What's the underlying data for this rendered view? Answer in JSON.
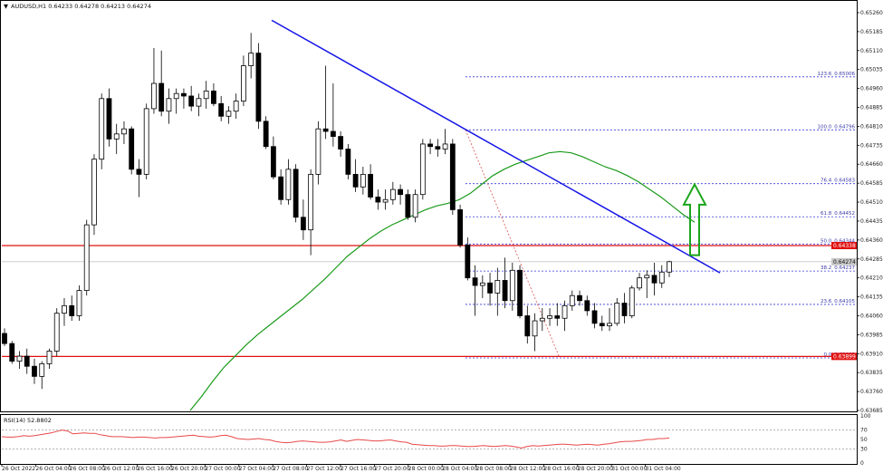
{
  "header": {
    "arrow": "▼",
    "text": "AUDUSD,H1  0.64233 0.64278 0.64213 0.64274"
  },
  "colors": {
    "bull_fill": "#ffffff",
    "bear_fill": "#000000",
    "candle_stroke": "#000000",
    "trendline": "#1414e6",
    "ma": "#1a9a1a",
    "resistance": "#e01010",
    "fib_dotted": "#3a3ad6",
    "fib_diag": "#e05050",
    "rsi_line": "#e84848",
    "arrow": "#1aa51a",
    "tag_red": "#e01010",
    "tag_gray": "#c8c8c8"
  },
  "chart_data": [
    {
      "type": "candlestick",
      "name": "price",
      "ylim": [
        0.63685,
        0.6526
      ],
      "y_ticks": [
        "0.65260",
        "0.65185",
        "0.65110",
        "0.65035",
        "0.64960",
        "0.64885",
        "0.64810",
        "0.64735",
        "0.64660",
        "0.64585",
        "0.64510",
        "0.64435",
        "0.64360",
        "0.64285",
        "0.64210",
        "0.64135",
        "0.64060",
        "0.63985",
        "0.63910",
        "0.63835",
        "0.63760",
        "0.63685"
      ],
      "x_labels": [
        "26 Oct 2022",
        "26 Oct 04:00",
        "26 Oct 08:00",
        "26 Oct 12:00",
        "26 Oct 16:00",
        "26 Oct 20:00",
        "27 Oct 00:00",
        "27 Oct 04:00",
        "27 Oct 08:00",
        "27 Oct 12:00",
        "27 Oct 16:00",
        "27 Oct 20:00",
        "28 Oct 00:00",
        "28 Oct 04:00",
        "28 Oct 08:00",
        "28 Oct 12:00",
        "28 Oct 16:00",
        "28 Oct 20:00",
        "31 Oct 00:00",
        "31 Oct 04:00"
      ],
      "candles": [
        [
          0.6399,
          0.6401,
          0.6394,
          0.6395
        ],
        [
          0.6395,
          0.6396,
          0.6387,
          0.6388
        ],
        [
          0.6388,
          0.6392,
          0.6385,
          0.639
        ],
        [
          0.639,
          0.6393,
          0.6383,
          0.6386
        ],
        [
          0.6386,
          0.6389,
          0.6379,
          0.6382
        ],
        [
          0.6382,
          0.6388,
          0.6377,
          0.6387
        ],
        [
          0.6387,
          0.6393,
          0.6385,
          0.6392
        ],
        [
          0.6392,
          0.6409,
          0.639,
          0.6407
        ],
        [
          0.6407,
          0.6413,
          0.6402,
          0.641
        ],
        [
          0.641,
          0.6414,
          0.6404,
          0.6406
        ],
        [
          0.6406,
          0.6418,
          0.6404,
          0.6416
        ],
        [
          0.6416,
          0.6444,
          0.6414,
          0.6442
        ],
        [
          0.6442,
          0.647,
          0.6438,
          0.6468
        ],
        [
          0.6468,
          0.6494,
          0.6464,
          0.6492
        ],
        [
          0.6492,
          0.6496,
          0.6473,
          0.6476
        ],
        [
          0.6476,
          0.6482,
          0.647,
          0.6478
        ],
        [
          0.6478,
          0.6483,
          0.6474,
          0.648
        ],
        [
          0.648,
          0.6481,
          0.6462,
          0.6464
        ],
        [
          0.6464,
          0.6468,
          0.6453,
          0.6462
        ],
        [
          0.6462,
          0.649,
          0.646,
          0.6488
        ],
        [
          0.6488,
          0.6512,
          0.6486,
          0.6498
        ],
        [
          0.6498,
          0.6511,
          0.6485,
          0.6487
        ],
        [
          0.6487,
          0.6496,
          0.6482,
          0.6492
        ],
        [
          0.6492,
          0.6496,
          0.6486,
          0.6494
        ],
        [
          0.6494,
          0.6496,
          0.6488,
          0.6493
        ],
        [
          0.6493,
          0.6497,
          0.6487,
          0.6489
        ],
        [
          0.6489,
          0.6494,
          0.6485,
          0.6492
        ],
        [
          0.6492,
          0.6499,
          0.6488,
          0.6495
        ],
        [
          0.6495,
          0.6498,
          0.6489,
          0.649
        ],
        [
          0.649,
          0.6493,
          0.6483,
          0.6485
        ],
        [
          0.6485,
          0.6489,
          0.6482,
          0.6487
        ],
        [
          0.6487,
          0.6494,
          0.6484,
          0.6491
        ],
        [
          0.6491,
          0.6509,
          0.6489,
          0.6505
        ],
        [
          0.6505,
          0.6518,
          0.65,
          0.651
        ],
        [
          0.651,
          0.6514,
          0.648,
          0.6483
        ],
        [
          0.6483,
          0.6485,
          0.6472,
          0.6473
        ],
        [
          0.6473,
          0.6477,
          0.646,
          0.6461
        ],
        [
          0.6461,
          0.6464,
          0.645,
          0.6452
        ],
        [
          0.6452,
          0.6468,
          0.645,
          0.6464
        ],
        [
          0.6464,
          0.6466,
          0.6443,
          0.6445
        ],
        [
          0.6445,
          0.6452,
          0.6436,
          0.644
        ],
        [
          0.644,
          0.6464,
          0.643,
          0.6462
        ],
        [
          0.6462,
          0.6483,
          0.6458,
          0.648
        ],
        [
          0.648,
          0.6505,
          0.6476,
          0.6479
        ],
        [
          0.6479,
          0.6498,
          0.6473,
          0.6477
        ],
        [
          0.6477,
          0.6479,
          0.6469,
          0.6472
        ],
        [
          0.6472,
          0.6474,
          0.646,
          0.6462
        ],
        [
          0.6462,
          0.6468,
          0.6455,
          0.6457
        ],
        [
          0.6457,
          0.6465,
          0.6454,
          0.6462
        ],
        [
          0.6462,
          0.6466,
          0.6452,
          0.6453
        ],
        [
          0.6453,
          0.6456,
          0.6448,
          0.6451
        ],
        [
          0.6451,
          0.6456,
          0.6448,
          0.6452
        ],
        [
          0.6452,
          0.6459,
          0.645,
          0.6456
        ],
        [
          0.6456,
          0.6458,
          0.645,
          0.6454
        ],
        [
          0.6454,
          0.6456,
          0.6444,
          0.6445
        ],
        [
          0.6445,
          0.6456,
          0.6443,
          0.6454
        ],
        [
          0.6454,
          0.6476,
          0.6452,
          0.6474
        ],
        [
          0.6474,
          0.6476,
          0.647,
          0.6473
        ],
        [
          0.6473,
          0.6476,
          0.6469,
          0.6472
        ],
        [
          0.6472,
          0.648,
          0.647,
          0.6474
        ],
        [
          0.6474,
          0.6476,
          0.6446,
          0.6448
        ],
        [
          0.6448,
          0.645,
          0.6433,
          0.6434
        ],
        [
          0.6434,
          0.6437,
          0.642,
          0.6421
        ],
        [
          0.6421,
          0.6426,
          0.6406,
          0.6418
        ],
        [
          0.6418,
          0.6422,
          0.6413,
          0.6419
        ],
        [
          0.6419,
          0.6423,
          0.641,
          0.6415
        ],
        [
          0.6415,
          0.6425,
          0.6406,
          0.642
        ],
        [
          0.642,
          0.6429,
          0.6409,
          0.6412
        ],
        [
          0.6412,
          0.6427,
          0.6408,
          0.6424
        ],
        [
          0.6424,
          0.6426,
          0.6405,
          0.6406
        ],
        [
          0.6406,
          0.641,
          0.6395,
          0.6398
        ],
        [
          0.6398,
          0.6407,
          0.6392,
          0.6404
        ],
        [
          0.6404,
          0.6409,
          0.64,
          0.6405
        ],
        [
          0.6405,
          0.6409,
          0.6402,
          0.6406
        ],
        [
          0.6406,
          0.6411,
          0.6402,
          0.6405
        ],
        [
          0.6405,
          0.6412,
          0.64,
          0.641
        ],
        [
          0.641,
          0.6416,
          0.6408,
          0.6414
        ],
        [
          0.6414,
          0.6416,
          0.641,
          0.6412
        ],
        [
          0.6412,
          0.6414,
          0.6406,
          0.6408
        ],
        [
          0.6408,
          0.6411,
          0.6401,
          0.6403
        ],
        [
          0.6403,
          0.6406,
          0.64,
          0.6402
        ],
        [
          0.6402,
          0.6409,
          0.64,
          0.6403
        ],
        [
          0.6403,
          0.6413,
          0.6402,
          0.6411
        ],
        [
          0.6411,
          0.6415,
          0.6403,
          0.6406
        ],
        [
          0.6406,
          0.6418,
          0.6405,
          0.6417
        ],
        [
          0.6417,
          0.6423,
          0.6416,
          0.6421
        ],
        [
          0.6421,
          0.6424,
          0.6413,
          0.6422
        ],
        [
          0.6422,
          0.6427,
          0.6414,
          0.6419
        ],
        [
          0.6419,
          0.6426,
          0.6417,
          0.64233
        ],
        [
          0.64233,
          0.64278,
          0.64213,
          0.64274
        ]
      ],
      "ma_values": [
        0.63685,
        0.6374,
        0.638,
        0.63855,
        0.639,
        0.63945,
        0.63985,
        0.6402,
        0.64055,
        0.6409,
        0.64125,
        0.64165,
        0.64205,
        0.6425,
        0.64295,
        0.6433,
        0.64365,
        0.64395,
        0.6442,
        0.6444,
        0.6446,
        0.6448,
        0.64495,
        0.64505,
        0.6452,
        0.64545,
        0.6458,
        0.64615,
        0.6464,
        0.6466,
        0.64675,
        0.6469,
        0.64705,
        0.6471,
        0.64705,
        0.6469,
        0.6467,
        0.6465,
        0.64635,
        0.64615,
        0.6459,
        0.6456,
        0.6453,
        0.64495,
        0.6446,
        0.6443
      ],
      "trendline": {
        "from": [
          0.6523,
          0.6423
        ],
        "label": ""
      },
      "resistance": [
        0.64338,
        0.63899
      ],
      "fibonacci": [
        {
          "level": "123.6",
          "price": "0.65006"
        },
        {
          "level": "100.0",
          "price": "0.64796"
        },
        {
          "level": "76.4",
          "price": "0.64583"
        },
        {
          "level": "61.8",
          "price": "0.64452"
        },
        {
          "level": "50.0",
          "price": "0.64344"
        },
        {
          "level": "38.2",
          "price": "0.64237"
        },
        {
          "level": "23.6",
          "price": "0.64105"
        },
        {
          "level": "0.0",
          "price": "0.63893"
        }
      ],
      "price_tags": [
        {
          "text": "0.64338",
          "value": 0.64338,
          "style": "red"
        },
        {
          "text": "0.64274",
          "value": 0.64274,
          "style": "gray"
        },
        {
          "text": "0.63899",
          "value": 0.63899,
          "style": "red"
        }
      ]
    },
    {
      "type": "line",
      "name": "rsi",
      "label": "RSI(14) 52.8802",
      "ylim": [
        0,
        100
      ],
      "y_ticks": [
        "100",
        "70",
        "50",
        "30",
        "0"
      ],
      "values": [
        56,
        55,
        55,
        56,
        58,
        57,
        58,
        60,
        62,
        64,
        67,
        70,
        68,
        62,
        63,
        64,
        63,
        63,
        60,
        58,
        56,
        56,
        56,
        55,
        54,
        55,
        55,
        54,
        53,
        54,
        54,
        55,
        56,
        57,
        58,
        59,
        57,
        56,
        55,
        56,
        58,
        59,
        56,
        52,
        51,
        50,
        51,
        52,
        50,
        49,
        46,
        44,
        43,
        44,
        46,
        47,
        46,
        45,
        44,
        44,
        45,
        47,
        49,
        46,
        48,
        50,
        49,
        48,
        47,
        47,
        48,
        49,
        47,
        45,
        44,
        40,
        39,
        38,
        37,
        37,
        36,
        36,
        37,
        37,
        36,
        35,
        35,
        36,
        37,
        36,
        35,
        36,
        37,
        36,
        34,
        32,
        35,
        37,
        36,
        37,
        38,
        39,
        40,
        40,
        39,
        38,
        39,
        40,
        39,
        38,
        40,
        41,
        43,
        45,
        46,
        46,
        47,
        48,
        50,
        50,
        52,
        52,
        53
      ]
    }
  ]
}
